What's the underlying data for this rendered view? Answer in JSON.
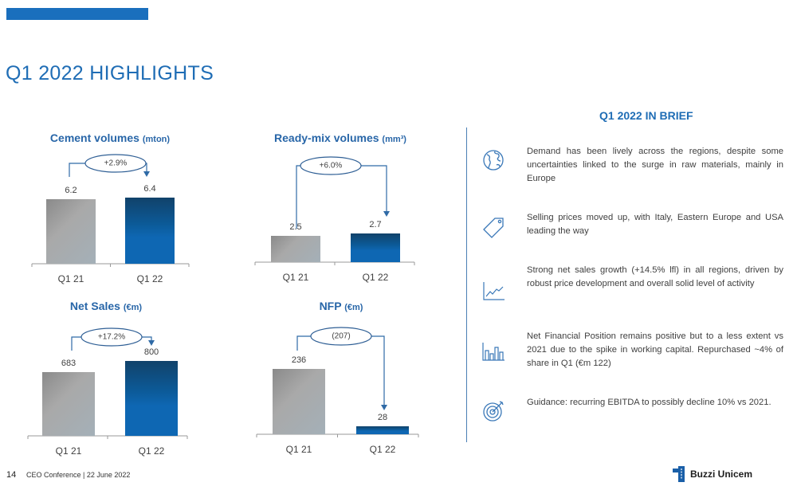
{
  "header": {
    "title": "Q1 2022 HIGHLIGHTS"
  },
  "chart_data": [
    {
      "type": "bar",
      "title": "Cement volumes",
      "unit": "(mton)",
      "categories": [
        "Q1 21",
        "Q1 22"
      ],
      "values": [
        6.2,
        6.4
      ],
      "labels": [
        "6.2",
        "6.4"
      ],
      "change": "+2.9%"
    },
    {
      "type": "bar",
      "title": "Ready-mix volumes",
      "unit": "(mm³)",
      "categories": [
        "Q1 21",
        "Q1 22"
      ],
      "values": [
        2.5,
        2.7
      ],
      "labels": [
        "2.5",
        "2.7"
      ],
      "change": "+6.0%"
    },
    {
      "type": "bar",
      "title": "Net Sales",
      "unit": "(€m)",
      "categories": [
        "Q1 21",
        "Q1 22"
      ],
      "values": [
        683,
        800
      ],
      "labels": [
        "683",
        "800"
      ],
      "change": "+17.2%"
    },
    {
      "type": "bar",
      "title": "NFP",
      "unit": "(€m)",
      "categories": [
        "Q1 21",
        "Q1 22"
      ],
      "values": [
        236,
        28
      ],
      "labels": [
        "236",
        "28"
      ],
      "change": "(207)"
    }
  ],
  "brief": {
    "title": "Q1 2022 IN BRIEF",
    "items": [
      {
        "icon": "globe-icon",
        "text": "Demand has been lively across the regions, despite some uncertainties linked to the surge in raw materials, mainly in Europe"
      },
      {
        "icon": "price-tag-icon",
        "text": "Selling prices moved up, with Italy, Eastern Europe and USA leading the way"
      },
      {
        "icon": "line-chart-icon",
        "text": "Strong net sales growth (+14.5% lfl) in all regions, driven by robust price development and overall solid level of activity"
      },
      {
        "icon": "bar-chart-icon",
        "text": "Net Financial Position remains positive but to a less extent vs 2021 due to the spike in working capital. Repurchased ~4% of share in Q1 (€m 122)"
      },
      {
        "icon": "target-icon",
        "text": "Guidance: recurring EBITDA to possibly decline 10% vs 2021."
      }
    ]
  },
  "footer": {
    "page": "14",
    "text": "CEO Conference | 22 June 2022",
    "logo": "Buzzi Unicem"
  },
  "colors": {
    "accent": "#1f6db5",
    "bar_current": "#0e67b3",
    "bar_previous": "#a0a0a0"
  }
}
